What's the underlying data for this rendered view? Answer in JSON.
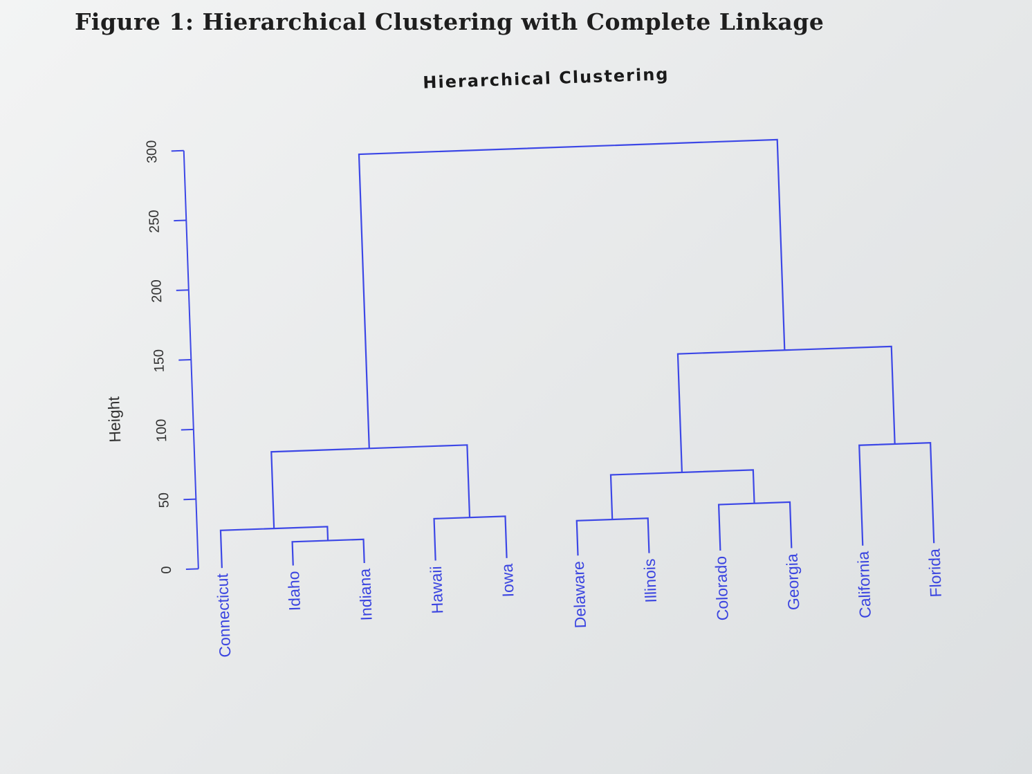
{
  "figure_caption": "Figure 1: Hierarchical Clustering with Complete Linkage",
  "colors": {
    "tree": "#3c47e6",
    "axis": "#3c47e6",
    "text": "#1a1a1a"
  },
  "chart_data": {
    "type": "dendrogram",
    "title": "Hierarchical Clustering",
    "ylabel": "Height",
    "ylim": [
      0,
      300
    ],
    "yticks": [
      0,
      50,
      100,
      150,
      200,
      250,
      300
    ],
    "leaves": [
      "Connecticut",
      "Idaho",
      "Indiana",
      "Hawaii",
      "Iowa",
      "Delaware",
      "Illinois",
      "Colorado",
      "Georgia",
      "California",
      "Florida"
    ],
    "merges": [
      {
        "id": "m1",
        "left": "Idaho",
        "right": "Indiana",
        "height": 17
      },
      {
        "id": "m2",
        "left": "Connecticut",
        "right": "m1",
        "height": 27
      },
      {
        "id": "m3",
        "left": "Hawaii",
        "right": "Iowa",
        "height": 30
      },
      {
        "id": "m4",
        "left": "m2",
        "right": "m3",
        "height": 82
      },
      {
        "id": "m5",
        "left": "Delaware",
        "right": "Illinois",
        "height": 25
      },
      {
        "id": "m6",
        "left": "Colorado",
        "right": "Georgia",
        "height": 33
      },
      {
        "id": "m7",
        "left": "m5",
        "right": "m6",
        "height": 57
      },
      {
        "id": "m8",
        "left": "California",
        "right": "Florida",
        "height": 72
      },
      {
        "id": "m9",
        "left": "m7",
        "right": "m8",
        "height": 142
      },
      {
        "id": "m10",
        "left": "m4",
        "right": "m9",
        "height": 293
      }
    ]
  }
}
